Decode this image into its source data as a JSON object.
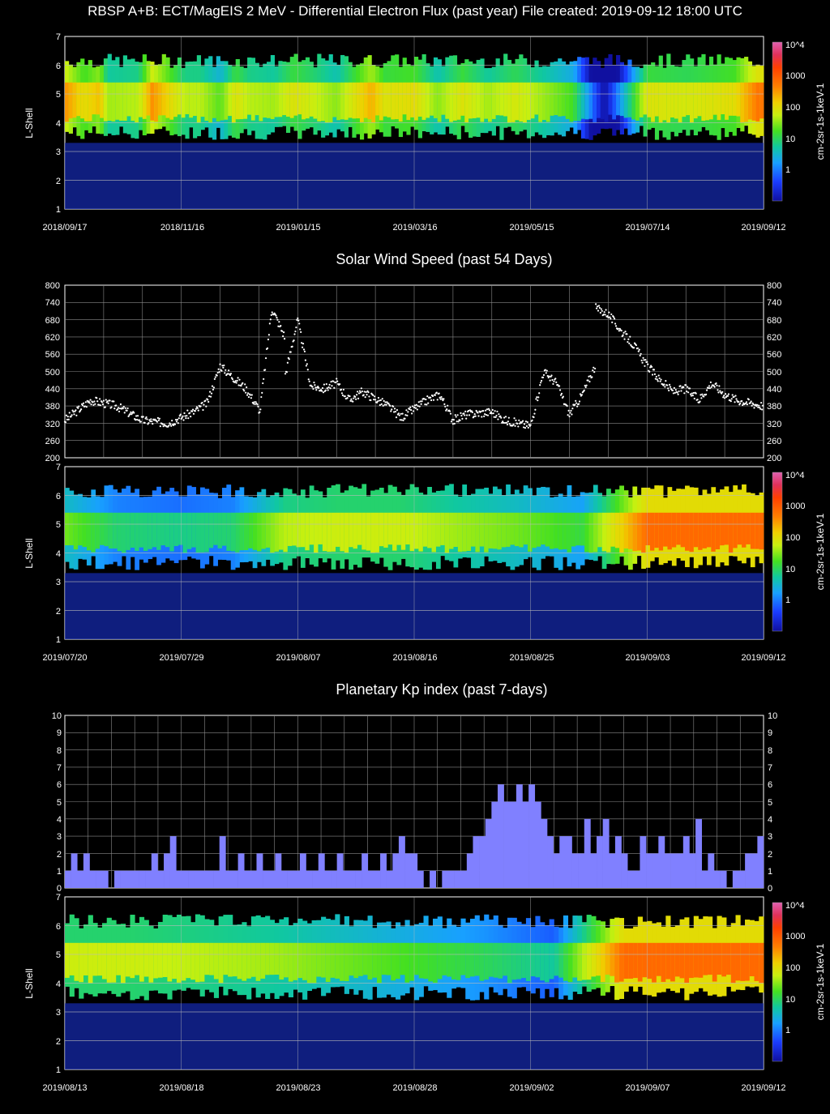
{
  "header": {
    "title": "RBSP A+B: ECT/MagEIS 2 MeV - Differential Electron Flux (past year) File created: 2019-09-12 18:00 UTC"
  },
  "colors": {
    "background": "#000000",
    "grid": "#8a8a8a",
    "kp_bar": "#8080ff",
    "wind_points": "#ffffff",
    "colorbar": [
      "#1010a0",
      "#1a3cff",
      "#18a0ff",
      "#10c8a0",
      "#44e020",
      "#c8f010",
      "#f0d000",
      "#ff8000",
      "#ff4000",
      "#e0305a",
      "#e060b0"
    ]
  },
  "colorbar": {
    "labels": [
      "10^4",
      "1000",
      "100",
      "10",
      "1"
    ],
    "unit_label": "cm-2sr-1s-1keV-1"
  },
  "panel1": {
    "ylabel": "L-Shell",
    "yticks": [
      "7",
      "6",
      "5",
      "4",
      "3",
      "2",
      "1"
    ],
    "xticks": [
      "2018/09/17",
      "2018/11/16",
      "2019/01/15",
      "2019/03/16",
      "2019/05/15",
      "2019/07/14",
      "2019/09/12"
    ]
  },
  "panel2": {
    "title": "Solar Wind Speed (past 54 Days)",
    "yticks": [
      "800",
      "740",
      "680",
      "620",
      "560",
      "500",
      "440",
      "380",
      "320",
      "260",
      "200"
    ]
  },
  "panel3": {
    "ylabel": "L-Shell",
    "yticks": [
      "7",
      "6",
      "5",
      "4",
      "3",
      "2",
      "1"
    ],
    "xticks": [
      "2019/07/20",
      "2019/07/29",
      "2019/08/07",
      "2019/08/16",
      "2019/08/25",
      "2019/09/03",
      "2019/09/12"
    ]
  },
  "panel4": {
    "title": "Planetary Kp index (past 7-days)",
    "yticks": [
      "10",
      "9",
      "8",
      "7",
      "6",
      "5",
      "4",
      "3",
      "2",
      "1",
      "0"
    ]
  },
  "panel5": {
    "ylabel": "L-Shell",
    "yticks": [
      "7",
      "6",
      "5",
      "4",
      "3",
      "2",
      "1"
    ],
    "xticks": [
      "2019/08/13",
      "2019/08/18",
      "2019/08/23",
      "2019/08/28",
      "2019/09/02",
      "2019/09/07",
      "2019/09/12"
    ]
  },
  "chart_data": [
    {
      "type": "heatmap",
      "title": "RBSP A+B: ECT/MagEIS 2 MeV - Differential Electron Flux (past year) File created: 2019-09-12 18:00 UTC",
      "xlabel": "",
      "ylabel": "L-Shell",
      "ylim": [
        1,
        7
      ],
      "x_ticks": [
        "2018/09/17",
        "2018/11/16",
        "2019/01/15",
        "2019/03/16",
        "2019/05/15",
        "2019/07/14",
        "2019/09/12"
      ],
      "colorbar": {
        "label": "cm-2sr-1s-1keV-1",
        "scale": "log",
        "ticks": [
          "1",
          "10",
          "100",
          "1000",
          "10^4"
        ]
      },
      "belt_days_since_start": [
        0,
        10,
        18,
        22,
        38,
        45,
        55,
        62,
        70,
        80,
        88,
        95,
        108,
        118,
        128,
        140,
        158,
        165,
        180,
        192,
        205,
        218,
        232,
        250,
        262,
        278,
        300,
        320,
        345,
        357
      ],
      "belt_log_flux": [
        2.6,
        2.0,
        2.3,
        1.5,
        1.6,
        2.6,
        2.0,
        1.6,
        1.6,
        1.2,
        1.9,
        1.6,
        1.5,
        1.9,
        1.7,
        1.4,
        2.4,
        1.9,
        2.0,
        1.4,
        1.9,
        1.5,
        1.8,
        1.4,
        1.1,
        -1.0,
        1.9,
        1.8,
        2.0,
        2.8
      ]
    },
    {
      "type": "scatter",
      "title": "Solar Wind Speed (past 54 Days)",
      "xlabel": "",
      "ylabel": "",
      "ylim": [
        200,
        800
      ],
      "x": [
        "2019/07/20",
        "2019/07/22",
        "2019/07/24",
        "2019/07/26",
        "2019/07/28",
        "2019/07/30",
        "2019/07/31",
        "2019/08/01",
        "2019/08/03",
        "2019/08/04",
        "2019/08/04",
        "2019/08/05",
        "2019/08/06",
        "2019/08/06",
        "2019/08/07",
        "2019/08/08",
        "2019/08/09",
        "2019/08/10",
        "2019/08/11",
        "2019/08/12",
        "2019/08/14",
        "2019/08/15",
        "2019/08/17",
        "2019/08/18",
        "2019/08/19",
        "2019/08/20",
        "2019/08/22",
        "2019/08/23",
        "2019/08/25",
        "2019/08/26",
        "2019/08/27",
        "2019/08/28",
        "2019/08/29",
        "2019/08/30",
        "2019/08/30",
        "2019/08/31",
        "2019/09/01",
        "2019/09/02",
        "2019/09/03",
        "2019/09/04",
        "2019/09/05",
        "2019/09/06",
        "2019/09/07",
        "2019/09/08",
        "2019/09/09",
        "2019/09/10",
        "2019/09/12"
      ],
      "y": [
        330,
        400,
        380,
        330,
        320,
        360,
        390,
        520,
        440,
        370,
        330,
        720,
        620,
        480,
        680,
        450,
        440,
        460,
        400,
        430,
        380,
        340,
        400,
        420,
        330,
        350,
        360,
        330,
        310,
        500,
        460,
        350,
        420,
        520,
        720,
        700,
        640,
        590,
        520,
        470,
        430,
        440,
        400,
        460,
        420,
        400,
        380
      ]
    },
    {
      "type": "heatmap",
      "title": "",
      "xlabel": "",
      "ylabel": "L-Shell",
      "ylim": [
        1,
        7
      ],
      "x_ticks": [
        "2019/07/20",
        "2019/07/29",
        "2019/08/07",
        "2019/08/16",
        "2019/08/25",
        "2019/09/03",
        "2019/09/12"
      ],
      "colorbar": {
        "label": "cm-2sr-1s-1keV-1",
        "scale": "log",
        "ticks": [
          "1",
          "10",
          "100",
          "1000",
          "10^4"
        ]
      },
      "belt_days_since_start": [
        0,
        4,
        9,
        13,
        17,
        21,
        26,
        30,
        35,
        40,
        45,
        50
      ],
      "belt_log_flux": [
        1.3,
        0.8,
        0.7,
        0.8,
        1.6,
        1.7,
        1.7,
        1.5,
        1.3,
        1.0,
        2.9,
        2.9
      ]
    },
    {
      "type": "bar",
      "title": "Planetary Kp index (past 7-days)",
      "xlabel": "",
      "ylabel": "",
      "ylim": [
        0,
        10
      ],
      "values": [
        1,
        2,
        1,
        2,
        1,
        1,
        1,
        0,
        1,
        1,
        1,
        1,
        1,
        1,
        2,
        1,
        2,
        3,
        1,
        1,
        1,
        1,
        1,
        1,
        1,
        3,
        1,
        1,
        2,
        1,
        1,
        2,
        1,
        1,
        2,
        1,
        1,
        1,
        2,
        1,
        1,
        2,
        1,
        1,
        2,
        1,
        1,
        1,
        2,
        1,
        1,
        2,
        1,
        2,
        3,
        2,
        2,
        1,
        0,
        1,
        0,
        1,
        1,
        1,
        1,
        2,
        3,
        3,
        4,
        5,
        6,
        5,
        5,
        6,
        5,
        6,
        5,
        4,
        3,
        2,
        3,
        3,
        2,
        2,
        4,
        2,
        3,
        4,
        2,
        3,
        2,
        1,
        1,
        3,
        2,
        2,
        3,
        2,
        2,
        2,
        3,
        2,
        4,
        1,
        2,
        1,
        1,
        0,
        1,
        1,
        2,
        2,
        3
      ]
    },
    {
      "type": "heatmap",
      "title": "",
      "xlabel": "",
      "ylabel": "L-Shell",
      "ylim": [
        1,
        7
      ],
      "x_ticks": [
        "2019/08/13",
        "2019/08/18",
        "2019/08/23",
        "2019/08/28",
        "2019/09/02",
        "2019/09/07",
        "2019/09/12"
      ],
      "colorbar": {
        "label": "cm-2sr-1s-1keV-1",
        "scale": "log",
        "ticks": [
          "1",
          "10",
          "100",
          "1000",
          "10^4"
        ]
      },
      "belt_days_since_start": [
        0,
        3,
        6,
        9,
        12,
        15,
        18,
        21,
        24,
        27,
        30
      ],
      "belt_log_flux": [
        1.7,
        1.7,
        1.6,
        1.5,
        1.3,
        1.1,
        0.9,
        0.6,
        2.9,
        2.9,
        2.9
      ]
    }
  ]
}
